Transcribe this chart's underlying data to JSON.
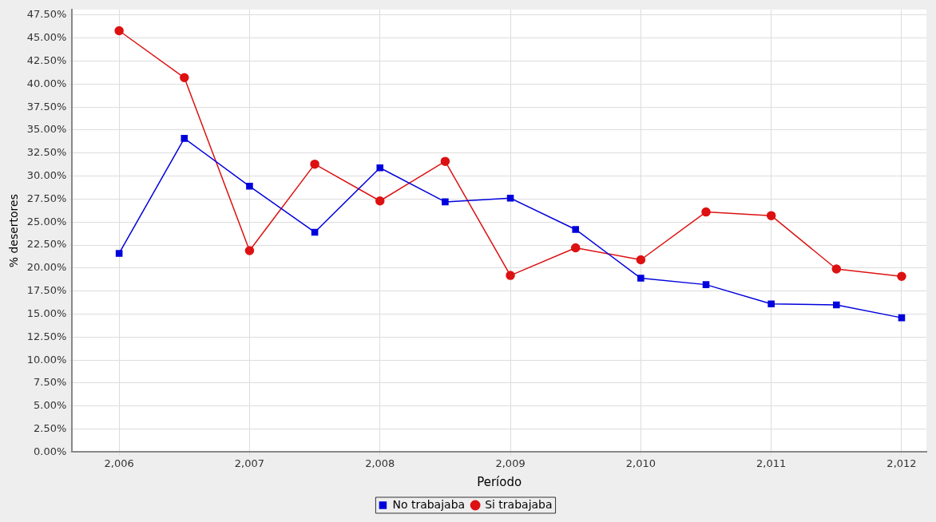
{
  "chart_data": {
    "type": "line",
    "xlabel": "Período",
    "ylabel": "% desertores",
    "x": [
      2006,
      2006.5,
      2007,
      2007.5,
      2008,
      2008.5,
      2009,
      2009.5,
      2010,
      2010.5,
      2011,
      2011.5,
      2012
    ],
    "series": [
      {
        "name": "No trabajaba",
        "color": "#0000dd",
        "marker": "square",
        "values": [
          21.6,
          34.1,
          28.9,
          23.9,
          30.9,
          27.2,
          27.6,
          24.2,
          18.9,
          18.2,
          16.1,
          16.0,
          14.6
        ]
      },
      {
        "name": "Si trabajaba",
        "color": "#dd1111",
        "marker": "circle",
        "values": [
          45.8,
          40.7,
          21.9,
          31.3,
          27.3,
          31.6,
          19.2,
          22.2,
          20.9,
          26.1,
          25.7,
          19.9,
          19.1
        ]
      }
    ],
    "xlim": [
      2005.64,
      2012.19
    ],
    "xticks": [
      {
        "value": 2006,
        "label": "2,006"
      },
      {
        "value": 2007,
        "label": "2,007"
      },
      {
        "value": 2008,
        "label": "2,008"
      },
      {
        "value": 2009,
        "label": "2,009"
      },
      {
        "value": 2010,
        "label": "2,010"
      },
      {
        "value": 2011,
        "label": "2,011"
      },
      {
        "value": 2012,
        "label": "2,012"
      }
    ],
    "ylim": [
      0,
      48.1
    ],
    "yticks": [
      {
        "value": 0,
        "label": "0.00%"
      },
      {
        "value": 2.5,
        "label": "2.50%"
      },
      {
        "value": 5,
        "label": "5.00%"
      },
      {
        "value": 7.5,
        "label": "7.50%"
      },
      {
        "value": 10,
        "label": "10.00%"
      },
      {
        "value": 12.5,
        "label": "12.50%"
      },
      {
        "value": 15,
        "label": "15.00%"
      },
      {
        "value": 17.5,
        "label": "17.50%"
      },
      {
        "value": 20,
        "label": "20.00%"
      },
      {
        "value": 22.5,
        "label": "22.50%"
      },
      {
        "value": 25,
        "label": "25.00%"
      },
      {
        "value": 27.5,
        "label": "27.50%"
      },
      {
        "value": 30,
        "label": "30.00%"
      },
      {
        "value": 32.5,
        "label": "32.50%"
      },
      {
        "value": 35,
        "label": "35.00%"
      },
      {
        "value": 37.5,
        "label": "37.50%"
      },
      {
        "value": 40,
        "label": "40.00%"
      },
      {
        "value": 42.5,
        "label": "42.50%"
      },
      {
        "value": 45,
        "label": "45.00%"
      },
      {
        "value": 47.5,
        "label": "47.50%"
      }
    ],
    "grid": true,
    "legend": "bottom",
    "line_style": "solid"
  }
}
